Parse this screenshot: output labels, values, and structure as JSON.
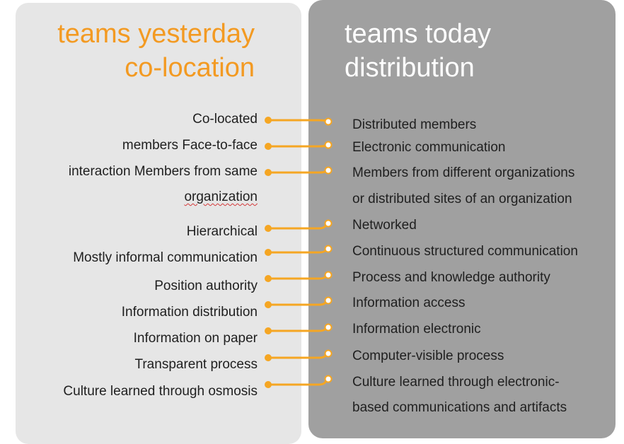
{
  "left_panel": {
    "title_line1": "teams yesterday",
    "title_line2": "co-location",
    "title_color": "#f39a22",
    "items": [
      "Co-located",
      "members Face-to-face",
      "interaction Members from same",
      "organization",
      "Hierarchical",
      "Mostly informal communication",
      "Position authority",
      "Information distribution",
      "Information on paper",
      "Transparent process",
      "Culture learned through osmosis"
    ]
  },
  "right_panel": {
    "title_line1": "teams today",
    "title_line2": "distribution",
    "items": [
      "Distributed members",
      "Electronic communication",
      "Members from different organizations",
      "or distributed sites of an organization",
      "Networked",
      "Continuous structured communication",
      "Process and knowledge authority",
      "Information access",
      "Information electronic",
      "Computer-visible process",
      "Culture learned through electronic-",
      "based communications and artifacts"
    ]
  },
  "connector_color": "#f5a623",
  "connector_count": 10
}
